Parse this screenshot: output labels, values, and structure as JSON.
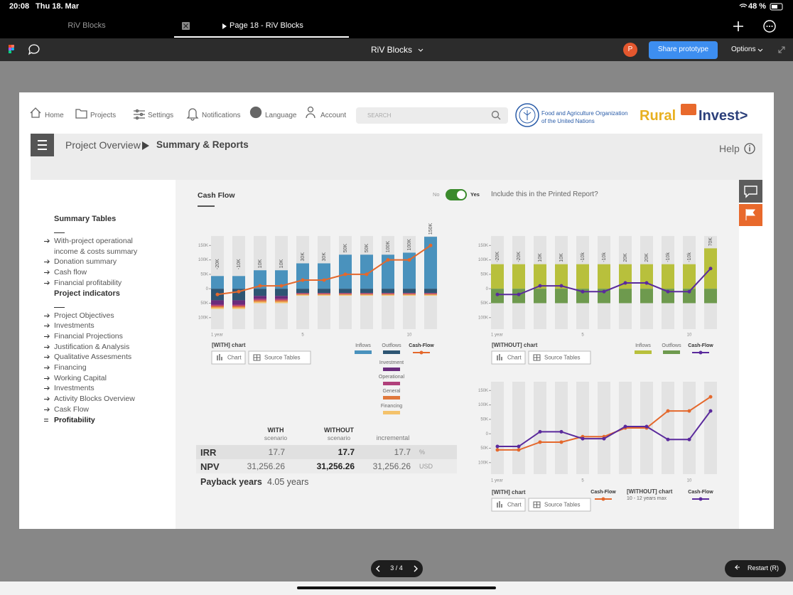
{
  "status_bar": {
    "time": "20:08",
    "date": "Thu 18. Mar",
    "battery": "48 %"
  },
  "tabs": [
    "RiV Blocks",
    "Page 18 - RiV Blocks"
  ],
  "figma_bar": {
    "file": "RiV Blocks",
    "avatar": "P",
    "share": "Share prototype",
    "options": "Options"
  },
  "nav": {
    "items": [
      "Home",
      "Projects",
      "Settings",
      "Notifications",
      "Language",
      "Account"
    ],
    "search": "SEARCH",
    "fao": [
      "Food and Agriculture Organization",
      "of the United Nations"
    ],
    "logo": [
      "Rural",
      "Invest>"
    ]
  },
  "breadcrumb": {
    "parent": "Project Overview",
    "current": "Summary & Reports",
    "help": "Help"
  },
  "sidebar": {
    "sections": [
      {
        "title": "Summary Tables",
        "items": [
          "With-project operational income & costs summary",
          "Donation summary",
          "Cash flow",
          "Financial profitability"
        ]
      },
      {
        "title": "Project indicators",
        "items": [
          "Project Objectives",
          "Investments",
          "Financial Projections",
          "Justification & Analysis",
          "Qualitative Assesments",
          "Financing",
          "Working Capital",
          "Investments",
          "Activity Blocks Overview",
          "Cask Flow",
          "Profitability"
        ]
      }
    ]
  },
  "panel": {
    "title": "Cash Flow",
    "toggle_off": "No",
    "toggle_on": "Yes",
    "question": "Include this in the Printed Report?"
  },
  "chart_data": [
    {
      "type": "bar",
      "caption": "[WITH] chart",
      "buttons": [
        "Chart",
        "Source Tables"
      ],
      "categories": [
        "1 year",
        null,
        null,
        null,
        "5",
        null,
        null,
        null,
        null,
        "10",
        null
      ],
      "ylim": [
        -140000,
        200000
      ],
      "yticks": [
        {
          "value": 150000,
          "label": "150K"
        },
        {
          "value": 100000,
          "label": "100K"
        },
        {
          "value": 50000,
          "label": "50K"
        },
        0,
        {
          "value": -50000,
          "label": "50K"
        },
        {
          "value": -100000,
          "label": "100K"
        }
      ],
      "series": [
        {
          "name": "Inflows",
          "color": "#4a92bd",
          "values": [
            44000,
            44000,
            64000,
            64000,
            88000,
            88000,
            118000,
            118000,
            118000,
            125000,
            180000
          ]
        },
        {
          "name": "Outflows",
          "color": "#2d5573",
          "values": [
            -40000,
            -40000,
            -25000,
            -25000,
            -15000,
            -15000,
            -15000,
            -15000,
            -15000,
            -15000,
            -15000
          ]
        },
        {
          "name": "Investment",
          "color": "#6a2c7c",
          "values": [
            -15000,
            -15000,
            -10000,
            -10000,
            0,
            0,
            0,
            0,
            0,
            0,
            0
          ]
        },
        {
          "name": "Operational",
          "color": "#b0407a",
          "values": [
            -5000,
            -5000,
            -5000,
            -5000,
            -3000,
            -3000,
            -3000,
            -3000,
            -3000,
            -3000,
            -3000
          ]
        },
        {
          "name": "General",
          "color": "#e0783c",
          "values": [
            -5000,
            -5000,
            -5000,
            -5000,
            -3000,
            -3000,
            -3000,
            -3000,
            -3000,
            -3000,
            -3000
          ]
        },
        {
          "name": "Financing",
          "color": "#f4c26b",
          "values": [
            -5000,
            -5000,
            -5000,
            -5000,
            -3000,
            -3000,
            -3000,
            -3000,
            -3000,
            -3000,
            -3000
          ]
        },
        {
          "name": "Cash-Flow",
          "type": "line",
          "color": "#e4682c",
          "values": [
            -20000,
            -10000,
            10000,
            10000,
            30000,
            30000,
            50000,
            50000,
            100000,
            100000,
            150000
          ],
          "value_labels": [
            "-20K",
            "-10K",
            "10K",
            "10K",
            "30K",
            "30K",
            "50K",
            "50K",
            "100K",
            "100K",
            "150K"
          ]
        }
      ]
    },
    {
      "type": "bar",
      "caption": "[WITHOUT] chart",
      "buttons": [
        "Chart",
        "Source Tables"
      ],
      "categories": [
        "1 year",
        null,
        null,
        null,
        "5",
        null,
        null,
        null,
        null,
        "10",
        null
      ],
      "ylim": [
        -140000,
        200000
      ],
      "yticks": [
        {
          "value": 150000,
          "label": "150K"
        },
        {
          "value": 100000,
          "label": "100K"
        },
        {
          "value": 50000,
          "label": "50K"
        },
        0,
        {
          "value": -50000,
          "label": "50K"
        },
        {
          "value": -100000,
          "label": "100K"
        }
      ],
      "series": [
        {
          "name": "Inflows",
          "color": "#b8c03c",
          "values": [
            85000,
            85000,
            85000,
            85000,
            85000,
            85000,
            85000,
            85000,
            85000,
            85000,
            140000
          ]
        },
        {
          "name": "Outflows",
          "color": "#6e9a4e",
          "values": [
            -50000,
            -50000,
            -50000,
            -50000,
            -50000,
            -50000,
            -50000,
            -50000,
            -50000,
            -50000,
            -50000
          ]
        },
        {
          "name": "Cash-Flow",
          "type": "line",
          "color": "#5a2a9c",
          "values": [
            -20000,
            -20000,
            10000,
            10000,
            -10000,
            -10000,
            20000,
            20000,
            -10000,
            -10000,
            70000
          ],
          "value_labels": [
            "-20K",
            "-20K",
            "10K",
            "10K",
            "-10k",
            "-10k",
            "20K",
            "20K",
            "-10k",
            "-10k",
            "70K"
          ]
        }
      ]
    },
    {
      "type": "line",
      "caption": "[WITH] chart",
      "legend_caption": "[WITHOUT] chart",
      "legend_note": "10 - 12 years max",
      "buttons": [
        "Chart",
        "Source Tables"
      ],
      "categories": [
        "1 year",
        null,
        null,
        null,
        "5",
        null,
        null,
        null,
        null,
        "10",
        null
      ],
      "ylim": [
        -140000,
        200000
      ],
      "yticks": [
        {
          "value": 150000,
          "label": "150K"
        },
        {
          "value": 100000,
          "label": "100K"
        },
        {
          "value": 50000,
          "label": "50K"
        },
        0,
        {
          "value": -50000,
          "label": "50K"
        },
        {
          "value": -100000,
          "label": "100K"
        }
      ],
      "series": [
        {
          "name": "Cash-Flow",
          "color": "#e4682c",
          "values": [
            -56000,
            -56000,
            -29000,
            -29000,
            -10000,
            -10000,
            20000,
            20000,
            79000,
            79000,
            128000
          ]
        },
        {
          "name": "Cash-Flow",
          "color": "#5a2a9c",
          "values": [
            -44000,
            -44000,
            7000,
            7000,
            -17000,
            -17000,
            25000,
            25000,
            -20000,
            -20000,
            79000
          ]
        }
      ]
    }
  ],
  "table": {
    "columns": [
      {
        "title": "WITH",
        "subtitle": "scenario"
      },
      {
        "title": "WITHOUT",
        "subtitle": "scenario"
      },
      {
        "title": "incremental"
      }
    ],
    "rows": [
      [
        "IRR",
        "17.7",
        "17.7",
        "17.7",
        "%"
      ],
      [
        "NPV",
        "31,256.26",
        "31,256.26",
        "31,256.26",
        "USD"
      ]
    ],
    "payback": {
      "label": "Payback years",
      "value": "4.05 years"
    }
  },
  "footer": {
    "pager": "3 / 4",
    "restart": "Restart (R)"
  }
}
